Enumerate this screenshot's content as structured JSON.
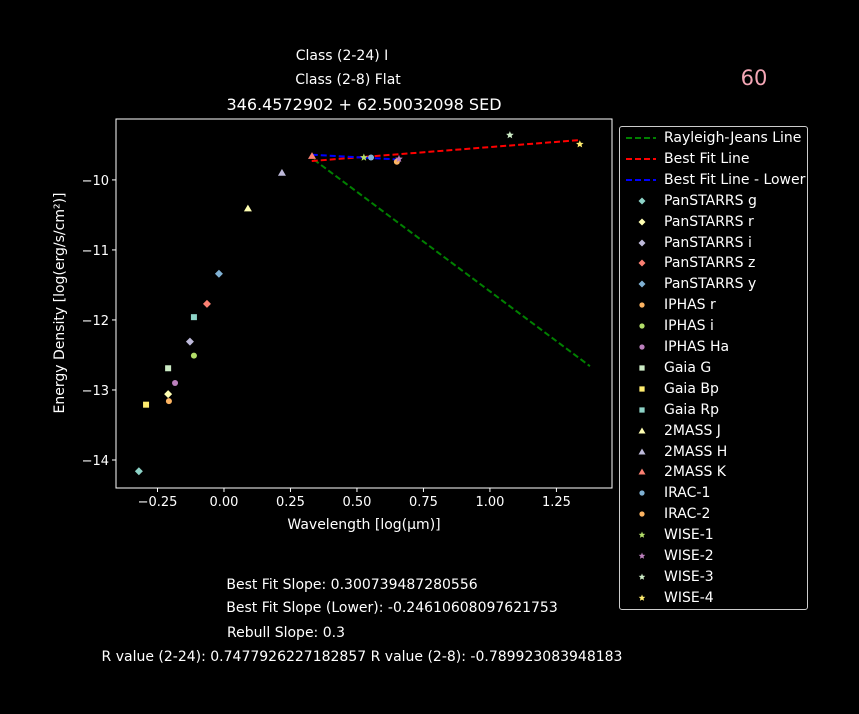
{
  "header": {
    "class_24": "Class (2-24) I",
    "class_8": "Class (2-8) Flat",
    "corner_number": "60"
  },
  "colors": {
    "corner_number": "#f4a6b5",
    "rj": "#008000",
    "best_fit": "#ff0000",
    "best_fit_lower": "#0000ff"
  },
  "chart_data": {
    "type": "scatter",
    "title": "346.4572902 + 62.50032098 SED",
    "xlabel": "Wavelength [log(μm)]",
    "ylabel": "Energy Density [log(erg/s/cm²)]",
    "xlim": [
      -0.406,
      1.459
    ],
    "ylim": [
      -14.4,
      -9.13
    ],
    "xticks": [
      -0.25,
      0.0,
      0.25,
      0.5,
      0.75,
      1.0,
      1.25
    ],
    "xtick_labels": [
      "−0.25",
      "0.00",
      "0.25",
      "0.50",
      "0.75",
      "1.00",
      "1.25"
    ],
    "yticks": [
      -10,
      -11,
      -12,
      -13,
      -14
    ],
    "ytick_labels": [
      "−10",
      "−11",
      "−12",
      "−13",
      "−14"
    ],
    "grid": false,
    "legend_placement": "outside-right",
    "lines": [
      {
        "name": "Rayleigh-Jeans Line",
        "color": "#008000",
        "x": [
          0.338,
          1.376
        ],
        "y": [
          -9.71,
          -12.66
        ]
      },
      {
        "name": "Best Fit Line",
        "color": "#ff0000",
        "x": [
          0.33,
          1.34
        ],
        "y": [
          -9.73,
          -9.43
        ]
      },
      {
        "name": "Best Fit Line - Lower",
        "color": "#0000ff",
        "x": [
          0.33,
          0.66
        ],
        "y": [
          -9.64,
          -9.71
        ]
      }
    ],
    "series": [
      {
        "name": "PanSTARRS g",
        "marker": "diamond",
        "color": "#8dd3c7",
        "x": -0.32,
        "y": -14.16
      },
      {
        "name": "PanSTARRS r",
        "marker": "diamond",
        "color": "#ffffb3",
        "x": -0.21,
        "y": -13.06
      },
      {
        "name": "PanSTARRS i",
        "marker": "diamond",
        "color": "#bebada",
        "x": -0.128,
        "y": -12.31
      },
      {
        "name": "PanSTARRS z",
        "marker": "diamond",
        "color": "#fb8072",
        "x": -0.064,
        "y": -11.77
      },
      {
        "name": "PanSTARRS y",
        "marker": "diamond",
        "color": "#80b1d3",
        "x": -0.019,
        "y": -11.34
      },
      {
        "name": "IPHAS r",
        "marker": "circle",
        "color": "#fdb462",
        "x": -0.207,
        "y": -13.16
      },
      {
        "name": "IPHAS i",
        "marker": "circle",
        "color": "#b3de69",
        "x": -0.113,
        "y": -12.51
      },
      {
        "name": "IPHAS Ha",
        "marker": "circle",
        "color": "#bc80bd",
        "x": -0.184,
        "y": -12.9
      },
      {
        "name": "Gaia G",
        "marker": "square",
        "color": "#ccebc5",
        "x": -0.21,
        "y": -12.69
      },
      {
        "name": "Gaia Bp",
        "marker": "square",
        "color": "#ffed6f",
        "x": -0.293,
        "y": -13.21
      },
      {
        "name": "Gaia Rp",
        "marker": "square",
        "color": "#8dd3c7",
        "x": -0.113,
        "y": -11.96
      },
      {
        "name": "2MASS J",
        "marker": "triangle",
        "color": "#ffffb3",
        "x": 0.09,
        "y": -10.41
      },
      {
        "name": "2MASS H",
        "marker": "triangle",
        "color": "#bebada",
        "x": 0.218,
        "y": -9.9
      },
      {
        "name": "2MASS K",
        "marker": "triangle",
        "color": "#fb8072",
        "x": 0.331,
        "y": -9.66
      },
      {
        "name": "IRAC-1",
        "marker": "circle",
        "color": "#80b1d3",
        "x": 0.553,
        "y": -9.68
      },
      {
        "name": "IRAC-2",
        "marker": "circle",
        "color": "#fdb462",
        "x": 0.65,
        "y": -9.74
      },
      {
        "name": "WISE-1",
        "marker": "star",
        "color": "#b3de69",
        "x": 0.526,
        "y": -9.68
      },
      {
        "name": "WISE-2",
        "marker": "star",
        "color": "#bc80bd",
        "x": 0.658,
        "y": -9.7
      },
      {
        "name": "WISE-3",
        "marker": "star",
        "color": "#ccebc5",
        "x": 1.075,
        "y": -9.36
      },
      {
        "name": "WISE-4",
        "marker": "star",
        "color": "#ffed6f",
        "x": 1.338,
        "y": -9.49
      }
    ]
  },
  "footer": {
    "slope": "Best Fit Slope: 0.300739487280556",
    "slope_lower": "Best Fit Slope (Lower): -0.24610608097621753",
    "rebull": "Rebull Slope: 0.3",
    "r_values": "R value (2-24): 0.7477926227182857   R value (2-8): -0.789923083948183"
  }
}
